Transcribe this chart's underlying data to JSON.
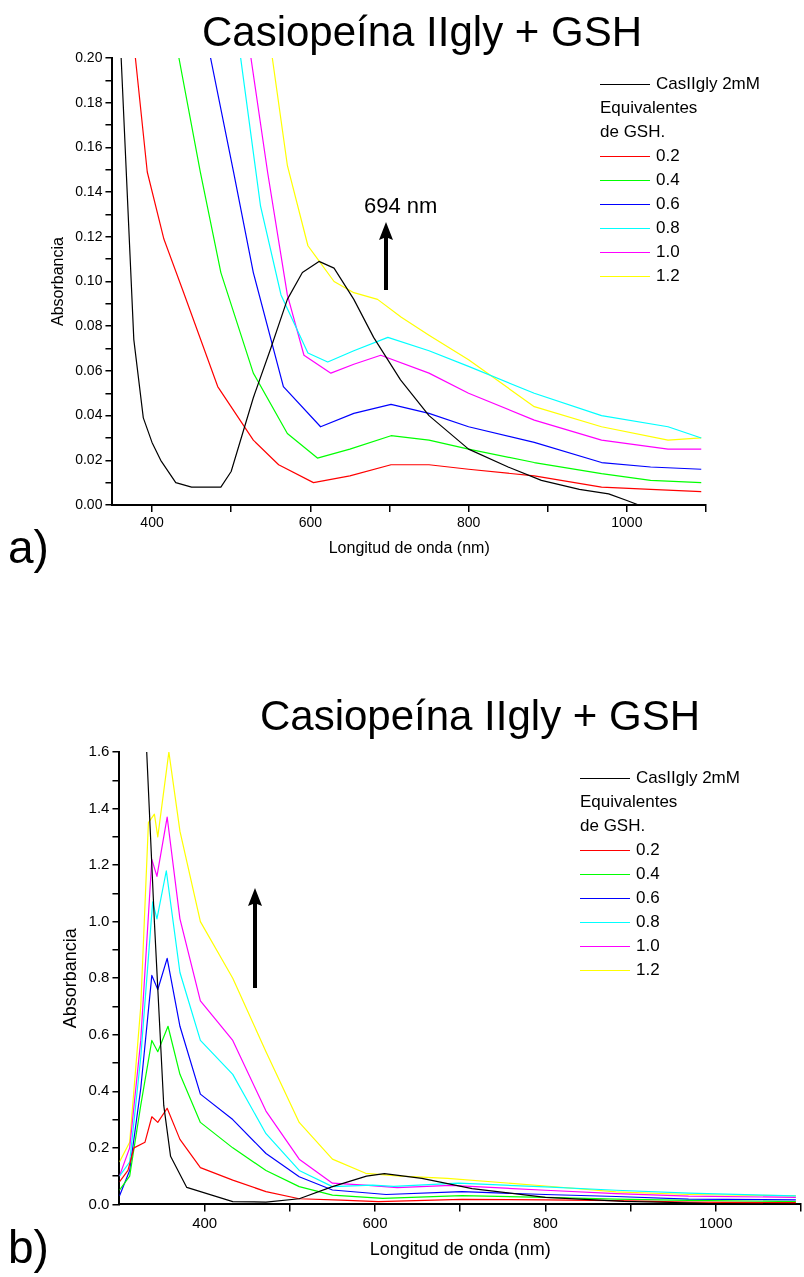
{
  "chart_data": [
    {
      "type": "line",
      "title": "Casiopeína IIgly + GSH",
      "xlabel": "Longitud de onda (nm)",
      "ylabel": "Absorbancia",
      "legend_title": "Equivalentes de GSH.",
      "legend": "top right",
      "marker": "none",
      "line_style": "solid",
      "grid": false,
      "xlim": [
        350,
        1100
      ],
      "xticks": [
        400,
        {
          "value": 500,
          "label": null
        },
        600,
        {
          "value": 700,
          "label": null
        },
        800,
        {
          "value": 900,
          "label": null
        },
        1000,
        {
          "value": 1100,
          "label": null
        }
      ],
      "ylim": [
        0,
        0.2
      ],
      "yticks": [
        {
          "value": 0,
          "label": "0.00"
        },
        {
          "value": 0.01,
          "label": null
        },
        {
          "value": 0.02,
          "label": "0.02"
        },
        {
          "value": 0.03,
          "label": null
        },
        {
          "value": 0.04,
          "label": "0.04"
        },
        {
          "value": 0.05,
          "label": null
        },
        {
          "value": 0.06,
          "label": "0.06"
        },
        {
          "value": 0.07,
          "label": null
        },
        {
          "value": 0.08,
          "label": "0.08"
        },
        {
          "value": 0.09,
          "label": null
        },
        {
          "value": 0.1,
          "label": "0.10"
        },
        {
          "value": 0.11,
          "label": null
        },
        {
          "value": 0.12,
          "label": "0.12"
        },
        {
          "value": 0.13,
          "label": null
        },
        {
          "value": 0.14,
          "label": "0.14"
        },
        {
          "value": 0.15,
          "label": null
        },
        {
          "value": 0.16,
          "label": "0.16"
        },
        {
          "value": 0.17,
          "label": null
        },
        {
          "value": 0.18,
          "label": "0.18"
        },
        {
          "value": 0.19,
          "label": null
        },
        {
          "value": 0.2,
          "label": "0.20"
        }
      ],
      "annotations": [
        "a)",
        "694 nm"
      ],
      "series": [
        {
          "name": "CasIIgly 2mM",
          "color": "#000000",
          "x": [
            361,
            377,
            389,
            400,
            411,
            430,
            450,
            470,
            487,
            500,
            528,
            550,
            571,
            590,
            611,
            630,
            655,
            680,
            714,
            750,
            800,
            850,
            892,
            940,
            977,
            1000,
            1015
          ],
          "values": [
            0.2,
            0.074,
            0.039,
            0.028,
            0.02,
            0.01,
            0.008,
            0.008,
            0.008,
            0.015,
            0.048,
            0.07,
            0.092,
            0.104,
            0.109,
            0.106,
            0.092,
            0.075,
            0.056,
            0.04,
            0.025,
            0.017,
            0.011,
            0.007,
            0.005,
            0.002,
            0
          ]
        },
        {
          "name": "0.2",
          "color": "#ff0000",
          "x": [
            379,
            394,
            415,
            440,
            483,
            528,
            560,
            604,
            650,
            702,
            750,
            800,
            883,
            968,
            1030,
            1094
          ],
          "values": [
            0.2,
            0.149,
            0.119,
            0.095,
            0.053,
            0.029,
            0.018,
            0.01,
            0.013,
            0.018,
            0.018,
            0.016,
            0.013,
            0.008,
            0.007,
            0.006
          ]
        },
        {
          "name": "0.4",
          "color": "#00ff00",
          "x": [
            434,
            461,
            487,
            528,
            571,
            609,
            650,
            702,
            750,
            800,
            883,
            968,
            1030,
            1094
          ],
          "values": [
            0.2,
            0.149,
            0.104,
            0.059,
            0.032,
            0.021,
            0.025,
            0.031,
            0.029,
            0.025,
            0.019,
            0.014,
            0.011,
            0.01
          ]
        },
        {
          "name": "0.6",
          "color": "#0000ff",
          "x": [
            474,
            503,
            528,
            566,
            613,
            655,
            702,
            750,
            800,
            883,
            968,
            1030,
            1094
          ],
          "values": [
            0.2,
            0.149,
            0.104,
            0.053,
            0.035,
            0.041,
            0.045,
            0.041,
            0.035,
            0.028,
            0.019,
            0.017,
            0.016
          ]
        },
        {
          "name": "0.8",
          "color": "#00ffff",
          "x": [
            512,
            537,
            563,
            597,
            622,
            655,
            698,
            750,
            800,
            883,
            968,
            1052,
            1094
          ],
          "values": [
            0.2,
            0.134,
            0.094,
            0.068,
            0.064,
            0.069,
            0.075,
            0.069,
            0.062,
            0.05,
            0.04,
            0.035,
            0.03
          ]
        },
        {
          "name": "1.0",
          "color": "#ff00ff",
          "x": [
            525,
            546,
            571,
            592,
            626,
            655,
            689,
            750,
            800,
            883,
            968,
            1052,
            1094
          ],
          "values": [
            0.2,
            0.149,
            0.094,
            0.067,
            0.059,
            0.063,
            0.067,
            0.059,
            0.05,
            0.038,
            0.029,
            0.025,
            0.025
          ]
        },
        {
          "name": "1.2",
          "color": "#ffff00",
          "x": [
            552,
            571,
            597,
            630,
            655,
            685,
            715,
            750,
            800,
            883,
            968,
            1052,
            1094
          ],
          "values": [
            0.2,
            0.152,
            0.116,
            0.1,
            0.095,
            0.092,
            0.084,
            0.076,
            0.065,
            0.044,
            0.035,
            0.029,
            0.03
          ]
        }
      ]
    },
    {
      "type": "line",
      "title": "Casiopeína IIgly + GSH",
      "xlabel": "Longitud de onda (nm)",
      "ylabel": "Absorbancia",
      "legend_title": "Equivalentes de GSH.",
      "legend": "top right",
      "marker": "none",
      "line_style": "solid",
      "grid": false,
      "xlim": [
        300,
        1100
      ],
      "xticks": [
        400,
        {
          "value": 500,
          "label": null
        },
        600,
        {
          "value": 700,
          "label": null
        },
        800,
        {
          "value": 900,
          "label": null
        },
        1000,
        {
          "value": 1100,
          "label": null
        }
      ],
      "ylim": [
        0,
        1.6
      ],
      "yticks": [
        {
          "value": 0,
          "label": "0.0"
        },
        {
          "value": 0.1,
          "label": null
        },
        {
          "value": 0.2,
          "label": "0.2"
        },
        {
          "value": 0.3,
          "label": null
        },
        {
          "value": 0.4,
          "label": "0.4"
        },
        {
          "value": 0.5,
          "label": null
        },
        {
          "value": 0.6,
          "label": "0.6"
        },
        {
          "value": 0.7,
          "label": null
        },
        {
          "value": 0.8,
          "label": "0.8"
        },
        {
          "value": 0.9,
          "label": null
        },
        {
          "value": 1,
          "label": "1.0"
        },
        {
          "value": 1.1,
          "label": null
        },
        {
          "value": 1.2,
          "label": "1.2"
        },
        {
          "value": 1.3,
          "label": null
        },
        {
          "value": 1.4,
          "label": "1.4"
        },
        {
          "value": 1.5,
          "label": null
        },
        {
          "value": 1.6,
          "label": "1.6"
        }
      ],
      "annotations": [
        "b)"
      ],
      "series": [
        {
          "name": "CasIIgly 2mM",
          "color": "#000000",
          "x": [
            332,
            341,
            352,
            360,
            379,
            433,
            472,
            511,
            550,
            590,
            611,
            655,
            714,
            800,
            892,
            977,
            1015
          ],
          "values": [
            1.6,
            1.0,
            0.35,
            0.17,
            0.06,
            0.01,
            0.008,
            0.02,
            0.063,
            0.1,
            0.109,
            0.092,
            0.056,
            0.025,
            0.011,
            0.005,
            0
          ]
        },
        {
          "name": "0.2",
          "color": "#ff0000",
          "x": [
            300,
            310,
            317,
            330,
            338,
            345,
            356,
            371,
            395,
            433,
            472,
            511,
            560,
            604,
            702,
            800,
            883,
            968,
            1094
          ],
          "values": [
            0.08,
            0.12,
            0.2,
            0.22,
            0.31,
            0.29,
            0.34,
            0.23,
            0.13,
            0.086,
            0.045,
            0.02,
            0.015,
            0.01,
            0.018,
            0.016,
            0.013,
            0.008,
            0.006
          ]
        },
        {
          "name": "0.4",
          "color": "#00ff00",
          "x": [
            300,
            312,
            325,
            338,
            345,
            357,
            371,
            395,
            433,
            472,
            511,
            550,
            609,
            702,
            800,
            883,
            968,
            1094
          ],
          "values": [
            0.05,
            0.1,
            0.35,
            0.58,
            0.54,
            0.63,
            0.46,
            0.29,
            0.2,
            0.12,
            0.063,
            0.033,
            0.021,
            0.031,
            0.025,
            0.019,
            0.014,
            0.01
          ]
        },
        {
          "name": "0.6",
          "color": "#0000ff",
          "x": [
            300,
            312,
            325,
            338,
            345,
            356,
            371,
            395,
            433,
            472,
            511,
            550,
            613,
            702,
            800,
            883,
            968,
            1094
          ],
          "values": [
            0.03,
            0.12,
            0.41,
            0.81,
            0.76,
            0.87,
            0.63,
            0.39,
            0.3,
            0.18,
            0.098,
            0.051,
            0.035,
            0.045,
            0.035,
            0.028,
            0.019,
            0.016
          ]
        },
        {
          "name": "0.8",
          "color": "#00ffff",
          "x": [
            300,
            312,
            325,
            339,
            344,
            355,
            371,
            395,
            433,
            472,
            511,
            550,
            597,
            622,
            698,
            800,
            883,
            968,
            1094
          ],
          "values": [
            0.1,
            0.15,
            0.52,
            1.07,
            1.01,
            1.18,
            0.82,
            0.58,
            0.46,
            0.25,
            0.12,
            0.063,
            0.068,
            0.064,
            0.075,
            0.062,
            0.05,
            0.04,
            0.03
          ]
        },
        {
          "name": "1.0",
          "color": "#ff00ff",
          "x": [
            300,
            312,
            325,
            338,
            344,
            356,
            371,
            395,
            433,
            472,
            511,
            550,
            592,
            626,
            689,
            800,
            883,
            968,
            1094
          ],
          "values": [
            0.1,
            0.2,
            0.58,
            1.22,
            1.16,
            1.37,
            1.01,
            0.72,
            0.58,
            0.33,
            0.16,
            0.075,
            0.067,
            0.059,
            0.067,
            0.05,
            0.038,
            0.029,
            0.025
          ]
        },
        {
          "name": "1.2",
          "color": "#ffff00",
          "x": [
            300,
            312,
            325,
            334,
            341,
            345,
            358,
            371,
            395,
            433,
            472,
            511,
            550,
            589,
            630,
            685,
            800,
            883,
            968,
            1094
          ],
          "values": [
            0.15,
            0.22,
            0.7,
            1.35,
            1.38,
            1.3,
            1.6,
            1.32,
            1.0,
            0.8,
            0.54,
            0.29,
            0.16,
            0.11,
            0.1,
            0.092,
            0.065,
            0.044,
            0.035,
            0.03
          ]
        }
      ]
    }
  ]
}
